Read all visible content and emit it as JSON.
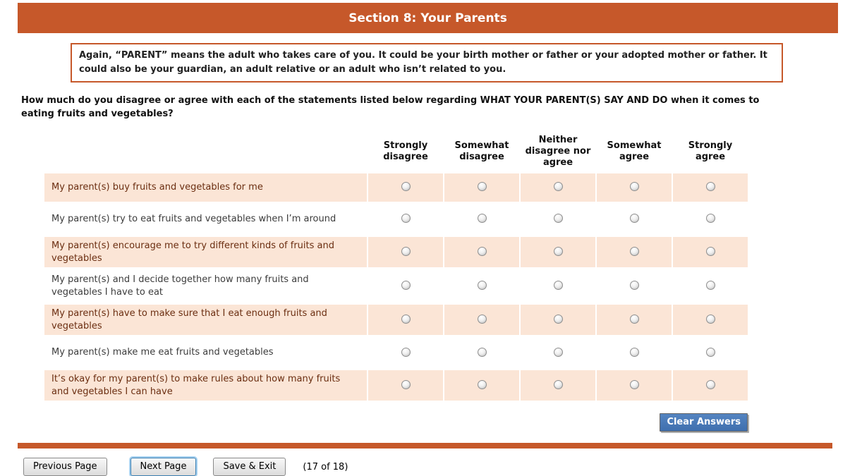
{
  "header": {
    "title": "Section 8: Your Parents"
  },
  "note": {
    "text": "Again, “PARENT” means the adult who takes care of you. It could be your birth mother or father or your adopted mother or father. It could also be your guardian, an adult relative or an adult who isn’t related to you."
  },
  "question": {
    "text": "How much do you disagree or agree with each of the statements listed below regarding WHAT YOUR PARENT(S) SAY AND DO when it comes to eating fruits and vegetables?"
  },
  "matrix": {
    "columns": [
      "Strongly disagree",
      "Somewhat disagree",
      "Neither disagree nor agree",
      "Somewhat agree",
      "Strongly agree"
    ],
    "rows": [
      {
        "label": "My parent(s) buy fruits and vegetables for me",
        "selected": null
      },
      {
        "label": "My parent(s) try to eat fruits and vegetables when I’m around",
        "selected": null
      },
      {
        "label": "My parent(s) encourage me to try different kinds of fruits and vegetables",
        "selected": null
      },
      {
        "label": "My parent(s) and I decide together how many fruits and vegetables I have to eat",
        "selected": null
      },
      {
        "label": "My parent(s) have to make sure that I eat enough fruits and vegetables",
        "selected": null
      },
      {
        "label": "My parent(s) make me eat fruits and vegetables",
        "selected": null
      },
      {
        "label": "It’s okay for my parent(s) to make rules about how many fruits and vegetables I can have",
        "selected": null
      }
    ],
    "clear_button_label": "Clear Answers"
  },
  "footer": {
    "previous_label": "Previous Page",
    "next_label": "Next Page",
    "save_label": "Save & Exit",
    "page_indicator": "(17 of 18)"
  },
  "colors": {
    "accent_orange": "#C6582A",
    "row_highlight_peach": "#FBE5D6",
    "row_highlight_text": "#6B2E11",
    "clear_button_blue": "#4577B8"
  }
}
